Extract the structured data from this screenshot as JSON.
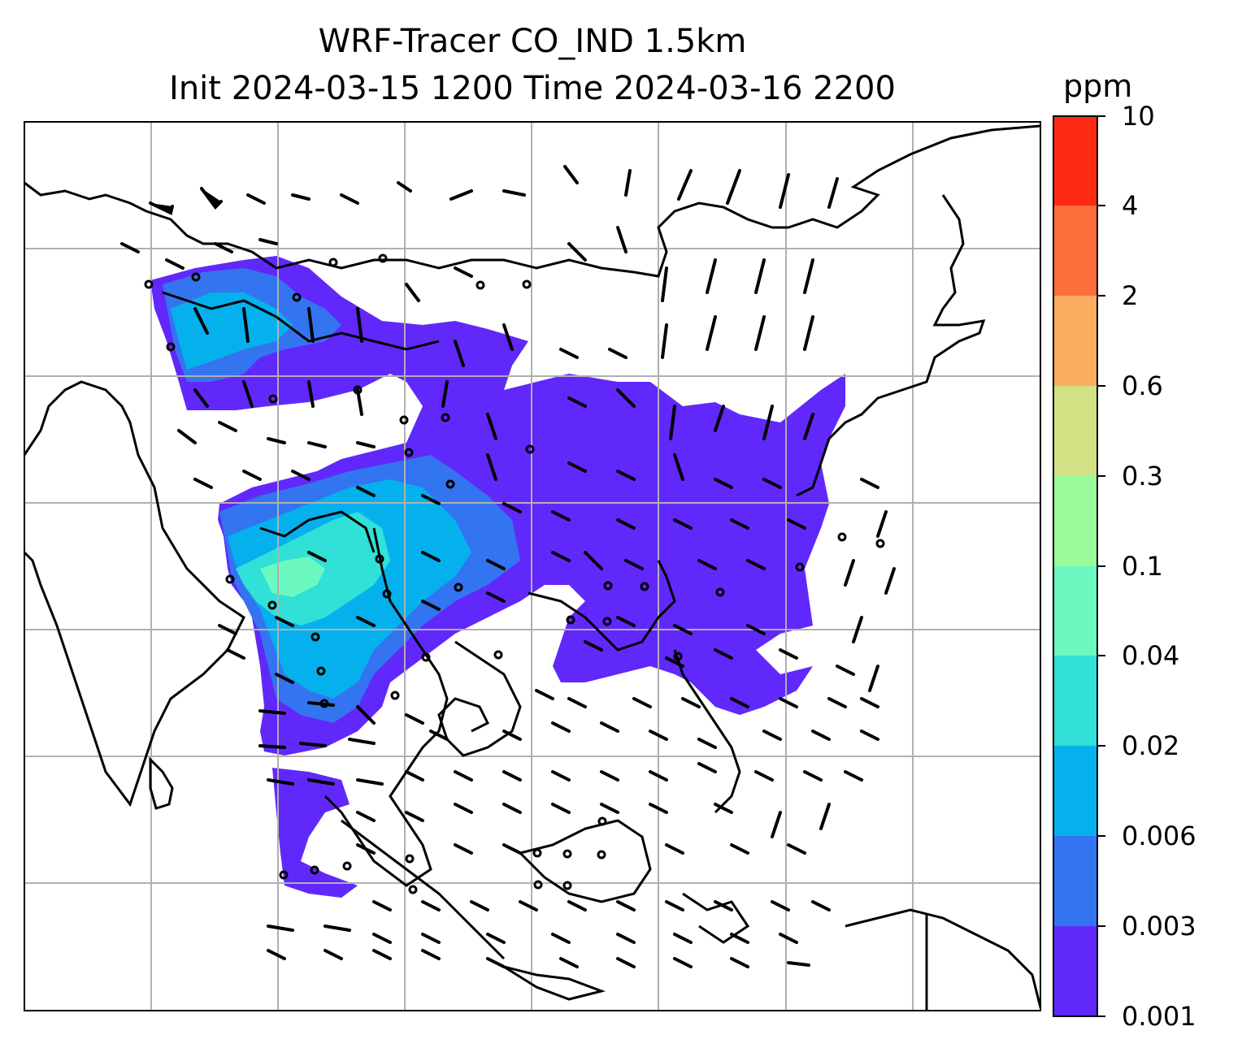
{
  "title": {
    "line1": "WRF-Tracer CO_IND 1.5km",
    "line2": "Init 2024-03-15 1200 Time 2024-03-16 2200"
  },
  "colorbar": {
    "unit": "ppm",
    "tick_labels": [
      "0.001",
      "0.003",
      "0.006",
      "0.02",
      "0.04",
      "0.1",
      "0.3",
      "0.6",
      "2",
      "4",
      "10"
    ],
    "colors": [
      "#6128fb",
      "#3374f0",
      "#05b1ed",
      "#31e0d6",
      "#6cf9c1",
      "#9bfb9b",
      "#d1e183",
      "#fdad60",
      "#fe6e3a",
      "#fe2a13"
    ]
  },
  "map": {
    "grid": true,
    "overlays": [
      "coastlines",
      "wind-barbs",
      "calm-circles",
      "tracer-concentration"
    ],
    "colors": {
      "coast": "#000000",
      "grid": "#b0b0b0",
      "tracer_low": "#6128fb",
      "tracer_mid": "#3374f0",
      "tracer_blue": "#05b1ed",
      "tracer_cyan": "#31e0d6",
      "tracer_green": "#6cf9c1"
    }
  }
}
